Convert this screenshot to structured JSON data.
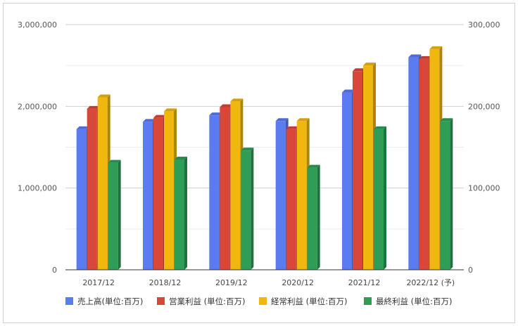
{
  "chart_data": {
    "type": "bar",
    "style": "3d-clustered",
    "categories": [
      "2017/12",
      "2018/12",
      "2019/12",
      "2020/12",
      "2021/12",
      "2022/12 (予)"
    ],
    "series": [
      {
        "name": "売上高(単位:百万)",
        "axis": "left",
        "color": "#5b7bf0",
        "values": [
          1720000,
          1810000,
          1890000,
          1820000,
          2170000,
          2600000
        ]
      },
      {
        "name": "営業利益 (単位:百万)",
        "axis": "right",
        "color": "#d9473b",
        "values": [
          197000,
          186000,
          199000,
          172000,
          243000,
          258000
        ]
      },
      {
        "name": "経常利益 (単位:百万)",
        "axis": "right",
        "color": "#f0b70f",
        "values": [
          211000,
          194000,
          206000,
          182000,
          250000,
          270000
        ]
      },
      {
        "name": "最終利益 (単位:百万)",
        "axis": "right",
        "color": "#2e9d56",
        "values": [
          131000,
          135000,
          146000,
          125000,
          172000,
          182000
        ]
      }
    ],
    "y_left": {
      "ylim": [
        0,
        3000000
      ],
      "ticks": [
        "0",
        "1,000,000",
        "2,000,000",
        "3,000,000"
      ]
    },
    "y_right": {
      "ylim": [
        0,
        300000
      ],
      "ticks": [
        "0",
        "100,000",
        "200,000",
        "300,000"
      ]
    },
    "grid": true,
    "legend_position": "bottom"
  }
}
